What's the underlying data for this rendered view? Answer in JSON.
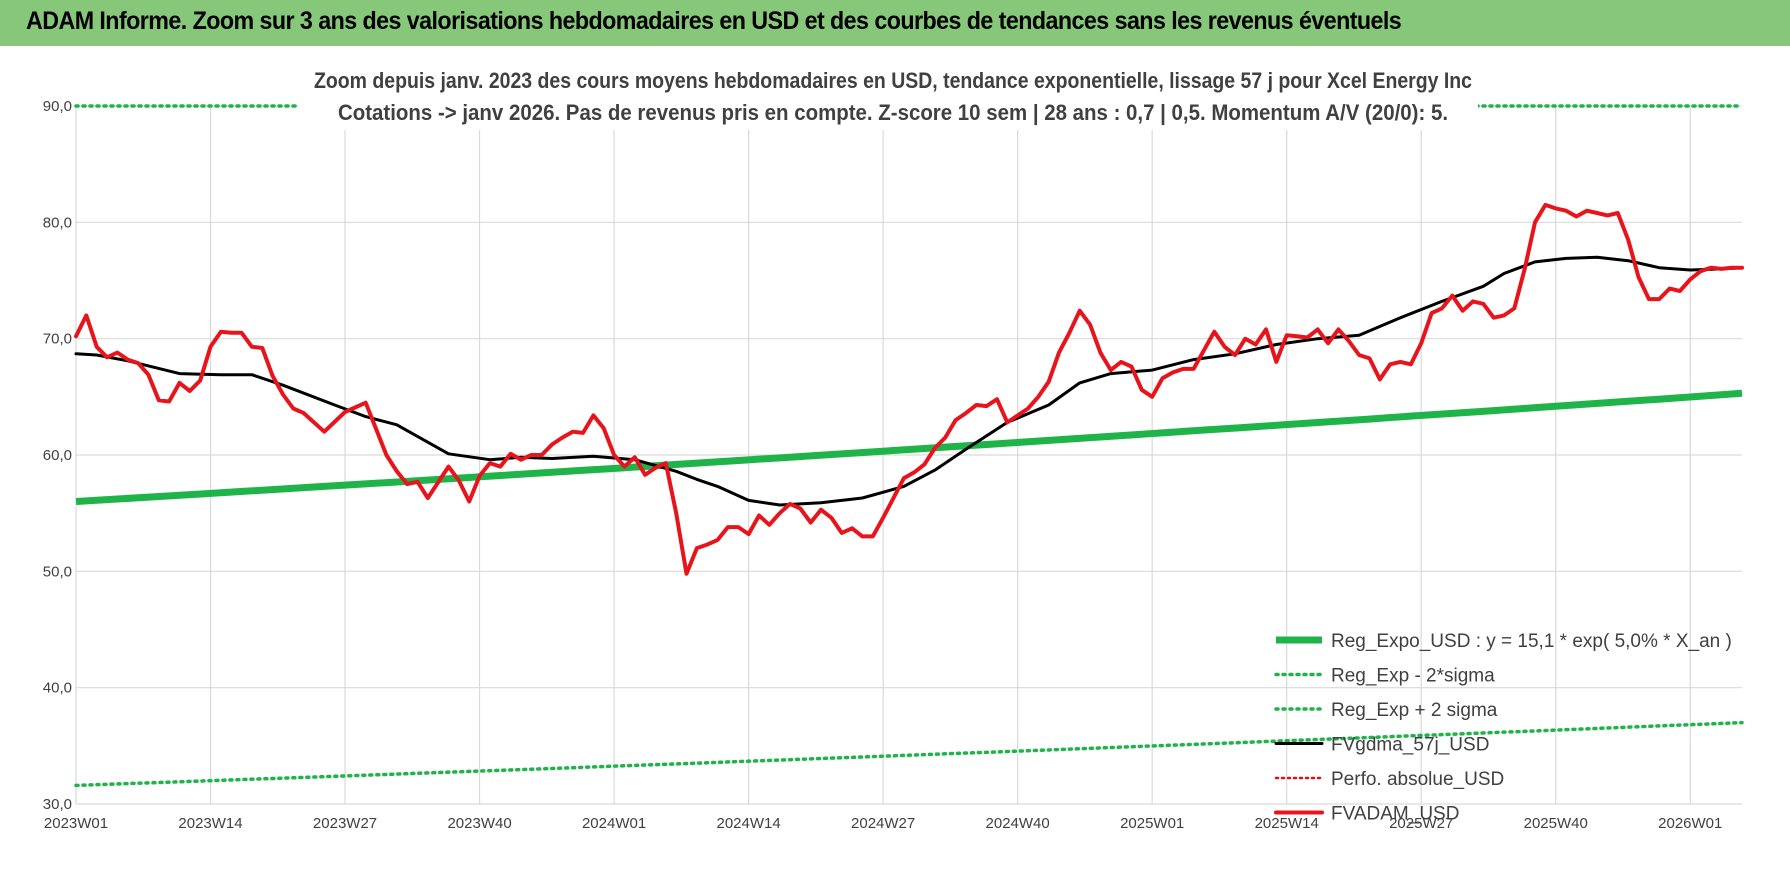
{
  "header": {
    "title": "ADAM Informe. Zoom sur 3 ans des valorisations hebdomadaires en USD et des courbes de tendances sans les revenus éventuels"
  },
  "chart_data": {
    "type": "line",
    "subtitle_line1": "Zoom depuis janv. 2023 des cours moyens hebdomadaires en USD, tendance exponentielle, lissage 57 j pour Xcel Energy Inc",
    "subtitle_line2": "Cotations -> janv 2026. Pas de revenus pris en compte. Z-score 10 sem | 28 ans : 0,7 | 0,5. Momentum A/V (20/0): 5.",
    "ylim": [
      30,
      90
    ],
    "y_ticks": [
      "30,0",
      "40,0",
      "50,0",
      "60,0",
      "70,0",
      "80,0",
      "90,0"
    ],
    "x_ticks": [
      "2023W01",
      "2023W14",
      "2023W27",
      "2023W40",
      "2024W01",
      "2024W14",
      "2024W27",
      "2024W40",
      "2025W01",
      "2025W14",
      "2025W27",
      "2025W40",
      "2026W01"
    ],
    "grid": "vertical and horizontal",
    "legend_position": "bottom-right",
    "colors": {
      "reg_expo": "#1fb44a",
      "reg_sigma": "#1fb44a",
      "fvgdma": "#000000",
      "perfo": "#e01010",
      "fvadam": "#e8141b",
      "grid": "#d9d9d9"
    },
    "series": [
      {
        "name": "Reg_Expo_USD : y = 15,1 * exp( 5,0% *  X_an )",
        "style": "thick-solid",
        "x_weeks": [
          0,
          161
        ],
        "values": [
          56.0,
          65.3
        ]
      },
      {
        "name": "Reg_Exp - 2*sigma",
        "style": "dotted",
        "x_weeks": [
          0,
          161
        ],
        "values": [
          31.6,
          37.0
        ]
      },
      {
        "name": "Reg_Exp + 2 sigma",
        "style": "dotted",
        "x_weeks": [
          0,
          161
        ],
        "values": [
          90.0,
          90.0
        ]
      },
      {
        "name": "FVgdma_57j_USD",
        "style": "solid",
        "x_weeks": [
          0,
          2,
          5,
          10,
          14,
          17,
          20,
          25,
          28,
          31,
          36,
          40,
          43,
          46,
          50,
          54,
          58,
          60,
          62,
          65,
          68,
          72,
          76,
          80,
          83,
          86,
          90,
          94,
          97,
          100,
          104,
          108,
          112,
          116,
          120,
          124,
          128,
          132,
          136,
          138,
          141,
          144,
          147,
          150,
          153,
          156,
          159,
          161
        ],
        "values": [
          68.7,
          68.6,
          68.1,
          67.0,
          66.9,
          66.9,
          66.0,
          64.3,
          63.3,
          62.6,
          60.1,
          59.6,
          59.8,
          59.7,
          59.9,
          59.6,
          58.6,
          57.9,
          57.3,
          56.1,
          55.7,
          55.9,
          56.3,
          57.3,
          58.7,
          60.5,
          62.8,
          64.3,
          66.2,
          67.0,
          67.3,
          68.2,
          68.7,
          69.5,
          70.0,
          70.3,
          71.8,
          73.2,
          74.5,
          75.6,
          76.6,
          76.9,
          77.0,
          76.7,
          76.1,
          75.9,
          76.0,
          76.1
        ]
      },
      {
        "name": "Perfo. absolue_USD",
        "style": "dotted",
        "x_weeks": [],
        "values": []
      },
      {
        "name": "FVADAM_USD",
        "style": "thick-solid",
        "x_weeks": [
          0,
          1,
          2,
          3,
          4,
          5,
          6,
          7,
          8,
          9,
          10,
          11,
          12,
          13,
          14,
          15,
          16,
          17,
          18,
          19,
          20,
          21,
          22,
          24,
          26,
          28,
          30,
          31,
          32,
          33,
          34,
          36,
          37,
          38,
          39,
          40,
          41,
          42,
          43,
          44,
          45,
          46,
          47,
          48,
          49,
          50,
          51,
          52,
          53,
          54,
          55,
          56,
          57,
          58,
          59,
          60,
          61,
          62,
          63,
          64,
          65,
          66,
          67,
          68,
          69,
          70,
          71,
          72,
          73,
          74,
          75,
          76,
          77,
          78,
          79,
          80,
          81,
          82,
          83,
          84,
          85,
          86,
          87,
          88,
          89,
          90,
          91,
          92,
          93,
          94,
          95,
          96,
          97,
          98,
          99,
          100,
          101,
          102,
          103,
          104,
          105,
          106,
          107,
          108,
          109,
          110,
          111,
          112,
          113,
          114,
          115,
          116,
          117,
          118,
          119,
          120,
          121,
          122,
          123,
          124,
          125,
          126,
          127,
          128,
          129,
          130,
          131,
          132,
          133,
          134,
          135,
          136,
          137,
          138,
          139,
          140,
          141,
          142,
          143,
          144,
          145,
          146,
          147,
          148,
          149,
          150,
          151,
          152,
          153,
          154,
          155,
          156,
          157,
          158,
          159,
          160,
          161
        ],
        "values": [
          70.2,
          72.0,
          69.3,
          68.4,
          68.8,
          68.2,
          67.9,
          66.9,
          64.7,
          64.6,
          66.2,
          65.5,
          66.4,
          69.3,
          70.6,
          70.5,
          70.5,
          69.3,
          69.2,
          66.8,
          65.2,
          64.0,
          63.6,
          62.0,
          63.7,
          64.5,
          60.0,
          58.6,
          57.5,
          57.7,
          56.3,
          59.0,
          57.8,
          56.0,
          58.2,
          59.3,
          59.0,
          60.1,
          59.6,
          60.0,
          60.0,
          60.9,
          61.5,
          62.0,
          61.9,
          63.4,
          62.3,
          60.0,
          59.0,
          59.8,
          58.3,
          58.9,
          59.3,
          55.0,
          49.8,
          52.0,
          52.3,
          52.7,
          53.8,
          53.8,
          53.2,
          54.8,
          54.0,
          55.0,
          55.8,
          55.4,
          54.2,
          55.3,
          54.6,
          53.3,
          53.7,
          53.0,
          53.0,
          54.6,
          56.3,
          58.0,
          58.5,
          59.2,
          60.6,
          61.5,
          63.0,
          63.6,
          64.3,
          64.2,
          64.8,
          62.8,
          63.4,
          64.0,
          65.0,
          66.3,
          68.8,
          70.5,
          72.4,
          71.2,
          68.8,
          67.3,
          68.0,
          67.6,
          65.6,
          65.0,
          66.6,
          67.1,
          67.4,
          67.4,
          69.0,
          70.6,
          69.3,
          68.6,
          70.0,
          69.5,
          70.8,
          68.0,
          70.3,
          70.2,
          70.1,
          70.8,
          69.6,
          70.8,
          69.8,
          68.6,
          68.3,
          66.5,
          67.8,
          68.0,
          67.8,
          69.6,
          72.2,
          72.6,
          73.7,
          72.4,
          73.2,
          73.0,
          71.8,
          72.0,
          72.6,
          76.0,
          80.0,
          81.5,
          81.2,
          81.0,
          80.5,
          81.0,
          80.8,
          80.6,
          80.8,
          78.5,
          75.3,
          73.4,
          73.4,
          74.3,
          74.1,
          75.1,
          75.8,
          76.1,
          76.0,
          76.1,
          76.1
        ]
      }
    ]
  }
}
